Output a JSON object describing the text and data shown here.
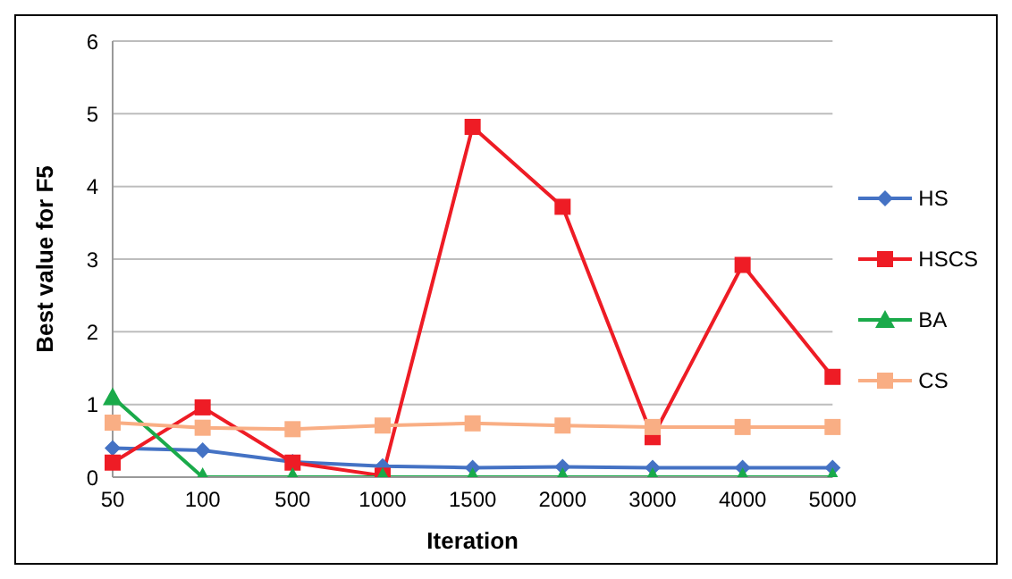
{
  "chart_data": {
    "type": "line",
    "xlabel": "Iteration",
    "ylabel": "Best value for F5",
    "categories": [
      "50",
      "100",
      "500",
      "1000",
      "1500",
      "2000",
      "3000",
      "4000",
      "5000"
    ],
    "ylim": [
      0,
      6
    ],
    "yticks": [
      0,
      1,
      2,
      3,
      4,
      5,
      6
    ],
    "grid": "y",
    "legend": "right",
    "series": [
      {
        "name": "HS",
        "color": "#4472c4",
        "marker": "diamond",
        "values": [
          0.4,
          0.37,
          0.21,
          0.15,
          0.13,
          0.14,
          0.13,
          0.13,
          0.13
        ]
      },
      {
        "name": "HSCS",
        "color": "#ee1c25",
        "marker": "square",
        "values": [
          0.2,
          0.96,
          0.2,
          0.02,
          4.82,
          3.72,
          0.55,
          2.92,
          1.38
        ]
      },
      {
        "name": "BA",
        "color": "#1aaa4a",
        "marker": "triangle",
        "values": [
          1.1,
          0,
          0,
          0,
          0,
          0,
          0,
          0,
          0
        ]
      },
      {
        "name": "CS",
        "color": "#f9ae84",
        "marker": "square",
        "values": [
          0.75,
          0.68,
          0.66,
          0.71,
          0.74,
          0.71,
          0.69,
          0.69,
          0.69
        ]
      }
    ]
  }
}
